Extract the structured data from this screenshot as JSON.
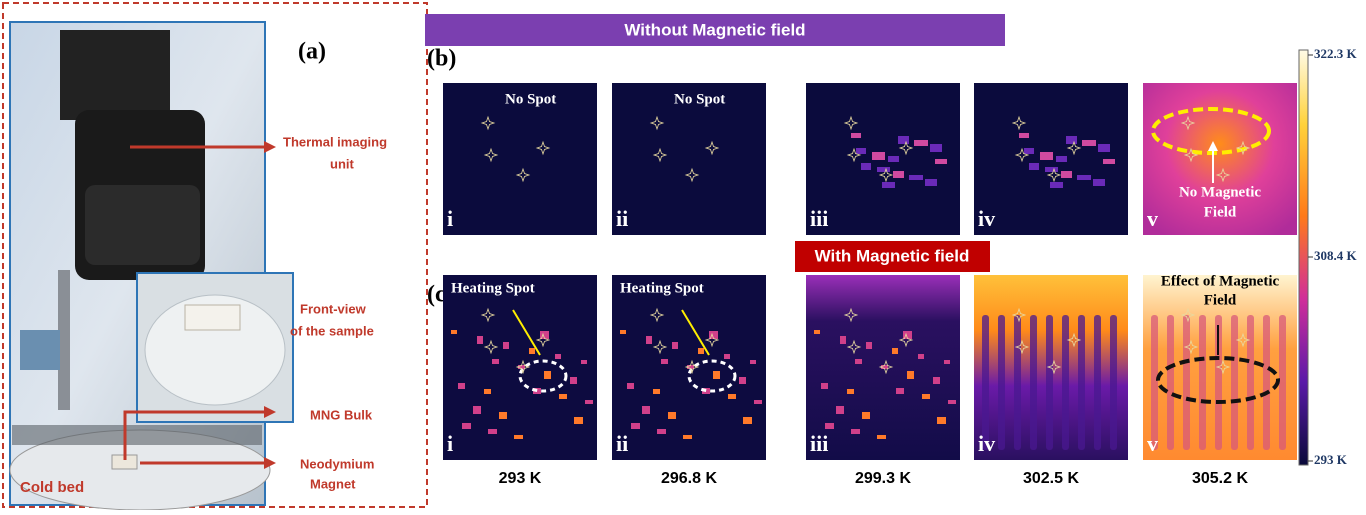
{
  "panel_a": {
    "label": "(a)",
    "annotations": [
      {
        "lines": [
          "Thermal imaging",
          "unit"
        ]
      },
      {
        "lines": [
          "Front-view",
          "of the sample"
        ]
      },
      {
        "lines": [
          "MNG Bulk"
        ]
      },
      {
        "lines": [
          "Neodymium",
          "Magnet"
        ]
      }
    ],
    "cold_bed": "Cold bed"
  },
  "panel_b": {
    "label": "(b)",
    "banner": "Without Magnetic field",
    "images": [
      {
        "roman": "i",
        "note": "No Spot"
      },
      {
        "roman": "ii",
        "note": "No Spot"
      },
      {
        "roman": "iii"
      },
      {
        "roman": "iv"
      },
      {
        "roman": "v",
        "note_lines": [
          "No Magnetic",
          "Field"
        ]
      }
    ]
  },
  "panel_c": {
    "label": "(c)",
    "banner": "With Magnetic field",
    "images": [
      {
        "roman": "i",
        "note": "Heating Spot",
        "temperature": "293 K"
      },
      {
        "roman": "ii",
        "note": "Heating Spot",
        "temperature": "296.8 K"
      },
      {
        "roman": "iii",
        "temperature": "299.3 K"
      },
      {
        "roman": "iv",
        "temperature": "302.5 K"
      },
      {
        "roman": "v",
        "note_lines": [
          "Effect of Magnetic",
          "Field"
        ],
        "temperature": "305.2 K"
      }
    ]
  },
  "colorbar": {
    "labels": [
      "322.3 K",
      "308.4 K",
      "293 K"
    ]
  }
}
